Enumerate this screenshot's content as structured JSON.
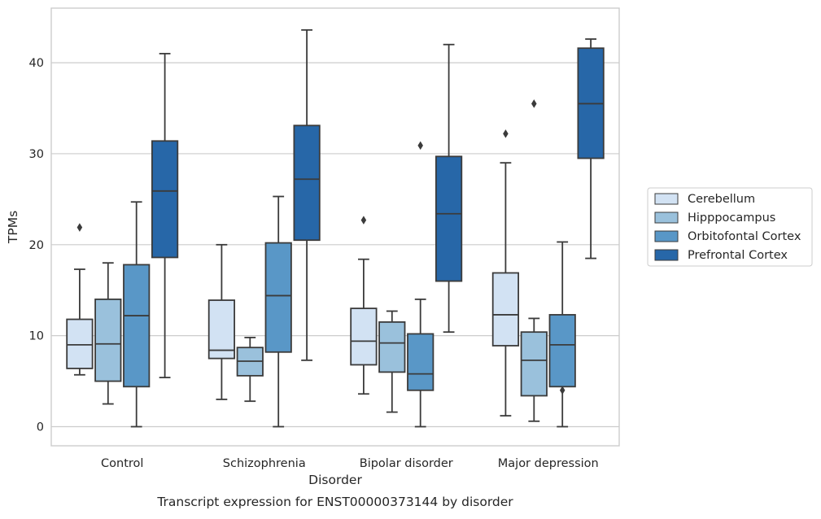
{
  "caption": "Transcript expression for ENST00000373144 by disorder",
  "chart_data": {
    "type": "boxplot",
    "xlabel": "Disorder",
    "ylabel": "TPMs",
    "ylim": [
      -2.1,
      46
    ],
    "yticks": [
      0,
      10,
      20,
      30,
      40
    ],
    "grid": "horizontal",
    "legend_position": "outside-right",
    "categories": [
      "Control",
      "Schizophrenia",
      "Bipolar disorder",
      "Major depression"
    ],
    "series": [
      {
        "name": "Cerebellum",
        "color": "#d2e2f3",
        "boxes": [
          {
            "whislo": 5.7,
            "q1": 6.4,
            "med": 9.0,
            "q3": 11.8,
            "whishi": 17.3,
            "fliers": [
              21.9
            ]
          },
          {
            "whislo": 3.0,
            "q1": 7.5,
            "med": 8.4,
            "q3": 13.9,
            "whishi": 20.0,
            "fliers": []
          },
          {
            "whislo": 3.6,
            "q1": 6.8,
            "med": 9.4,
            "q3": 13.0,
            "whishi": 18.4,
            "fliers": [
              22.7
            ]
          },
          {
            "whislo": 1.2,
            "q1": 8.9,
            "med": 12.3,
            "q3": 16.9,
            "whishi": 29.0,
            "fliers": [
              32.2
            ]
          }
        ]
      },
      {
        "name": "Hipppocampus",
        "color": "#9ac1dc",
        "boxes": [
          {
            "whislo": 2.5,
            "q1": 5.0,
            "med": 9.1,
            "q3": 14.0,
            "whishi": 18.0,
            "fliers": []
          },
          {
            "whislo": 2.8,
            "q1": 5.6,
            "med": 7.2,
            "q3": 8.7,
            "whishi": 9.8,
            "fliers": []
          },
          {
            "whislo": 1.6,
            "q1": 6.0,
            "med": 9.2,
            "q3": 11.5,
            "whishi": 12.7,
            "fliers": []
          },
          {
            "whislo": 0.6,
            "q1": 3.4,
            "med": 7.3,
            "q3": 10.4,
            "whishi": 11.9,
            "fliers": [
              35.5
            ]
          }
        ]
      },
      {
        "name": "Orbitofontal Cortex",
        "color": "#5997c7",
        "boxes": [
          {
            "whislo": 0.0,
            "q1": 4.4,
            "med": 12.2,
            "q3": 17.8,
            "whishi": 24.7,
            "fliers": []
          },
          {
            "whislo": 0.0,
            "q1": 8.2,
            "med": 14.4,
            "q3": 20.2,
            "whishi": 25.3,
            "fliers": []
          },
          {
            "whislo": 0.0,
            "q1": 4.0,
            "med": 5.8,
            "q3": 10.2,
            "whishi": 14.0,
            "fliers": [
              30.9
            ]
          },
          {
            "whislo": 0.0,
            "q1": 4.4,
            "med": 9.0,
            "q3": 12.3,
            "whishi": 20.3,
            "fliers": [
              4.0
            ]
          }
        ]
      },
      {
        "name": "Prefrontal Cortex",
        "color": "#2767a8",
        "boxes": [
          {
            "whislo": 5.4,
            "q1": 18.6,
            "med": 25.9,
            "q3": 31.4,
            "whishi": 41.0,
            "fliers": []
          },
          {
            "whislo": 7.3,
            "q1": 20.5,
            "med": 27.2,
            "q3": 33.1,
            "whishi": 43.6,
            "fliers": []
          },
          {
            "whislo": 10.4,
            "q1": 16.0,
            "med": 23.4,
            "q3": 29.7,
            "whishi": 42.0,
            "fliers": []
          },
          {
            "whislo": 18.5,
            "q1": 29.5,
            "med": 35.5,
            "q3": 41.6,
            "whishi": 42.6,
            "fliers": []
          }
        ]
      }
    ]
  }
}
